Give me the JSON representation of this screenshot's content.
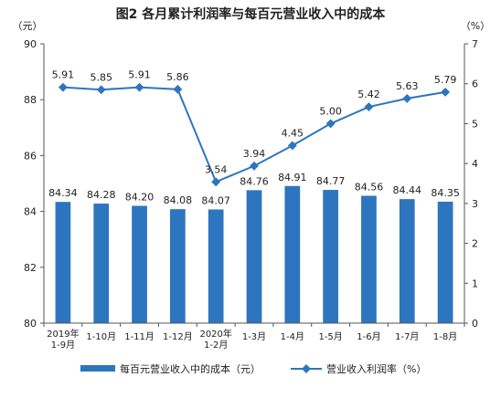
{
  "chart_data": {
    "type": "bar+line",
    "title": "图2  各月累计利润率与每百元营业收入中的成本",
    "left_axis": {
      "unit_label": "（元）",
      "ylim": [
        80,
        90
      ],
      "ticks": [
        80,
        82,
        84,
        86,
        88,
        90
      ]
    },
    "right_axis": {
      "unit_label": "（%）",
      "ylim": [
        0,
        7
      ],
      "ticks": [
        0,
        1,
        2,
        3,
        4,
        5,
        6,
        7
      ]
    },
    "categories": [
      [
        "2019年",
        "1-9月"
      ],
      [
        "1-10月"
      ],
      [
        "1-11月"
      ],
      [
        "1-12月"
      ],
      [
        "2020年",
        "1-2月"
      ],
      [
        "1-3月"
      ],
      [
        "1-4月"
      ],
      [
        "1-5月"
      ],
      [
        "1-6月"
      ],
      [
        "1-7月"
      ],
      [
        "1-8月"
      ]
    ],
    "series": [
      {
        "name": "每百元营业收入中的成本（元）",
        "type": "bar",
        "axis": "left",
        "color": "#2e75c0",
        "values": [
          84.34,
          84.28,
          84.2,
          84.08,
          84.07,
          84.76,
          84.91,
          84.77,
          84.56,
          84.44,
          84.35
        ],
        "labels": [
          "84.34",
          "84.28",
          "84.20",
          "84.08",
          "84.07",
          "84.76",
          "84.91",
          "84.77",
          "84.56",
          "84.44",
          "84.35"
        ]
      },
      {
        "name": "营业收入利润率（%）",
        "type": "line",
        "axis": "right",
        "color": "#2e75c0",
        "values": [
          5.91,
          5.85,
          5.91,
          5.86,
          3.54,
          3.94,
          4.45,
          5.0,
          5.42,
          5.63,
          5.79
        ],
        "labels": [
          "5.91",
          "5.85",
          "5.91",
          "5.86",
          "3.54",
          "3.94",
          "4.45",
          "5.00",
          "5.42",
          "5.63",
          "5.79"
        ]
      }
    ],
    "legend_position": "bottom",
    "grid": false
  }
}
